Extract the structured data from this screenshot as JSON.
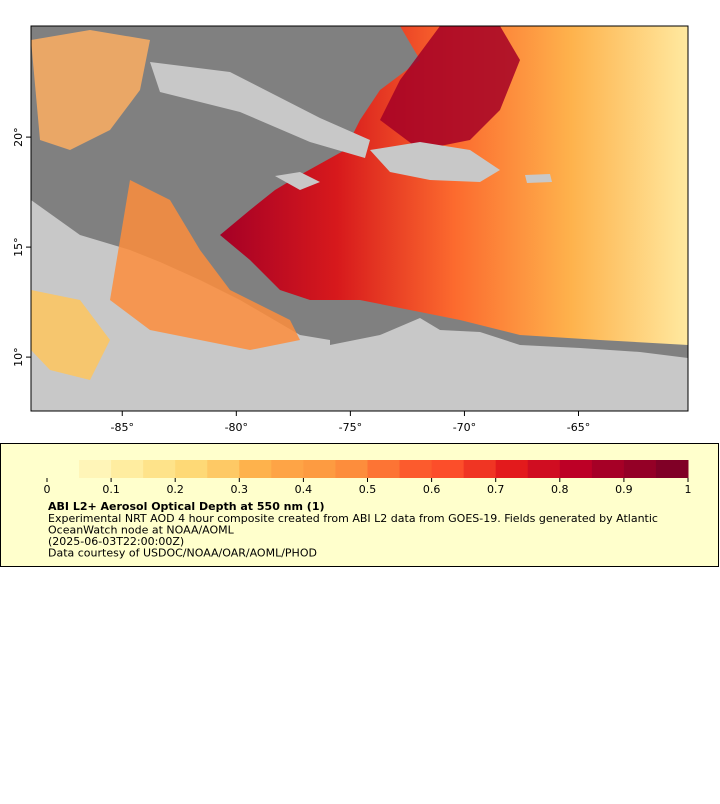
{
  "map": {
    "xlim": [
      -89,
      -60.2
    ],
    "ylim": [
      7.55,
      25.05
    ],
    "xticks": [
      {
        "value": -85,
        "label": "-85°"
      },
      {
        "value": -80,
        "label": "-80°"
      },
      {
        "value": -75,
        "label": "-75°"
      },
      {
        "value": -70,
        "label": "-70°"
      },
      {
        "value": -65,
        "label": "-65°"
      }
    ],
    "yticks": [
      {
        "value": 10,
        "label": "10°"
      },
      {
        "value": 15,
        "label": "15°"
      },
      {
        "value": 20,
        "label": "20°"
      }
    ]
  },
  "colorbar": {
    "lim": [
      0,
      1
    ],
    "ticks": [
      0,
      0.1,
      0.2,
      0.3,
      0.4,
      0.5,
      0.6,
      0.7,
      0.8,
      0.9,
      1
    ],
    "colors": [
      "#ffffcc",
      "#fff5b8",
      "#ffeda0",
      "#fee38a",
      "#fed976",
      "#fec965",
      "#feb24c",
      "#fea446",
      "#fd9b41",
      "#fd8d3c",
      "#fd7434",
      "#fc5b2d",
      "#fc4e2a",
      "#f03523",
      "#e31a1c",
      "#d00d21",
      "#bd0026",
      "#a60026",
      "#940026",
      "#800026"
    ]
  },
  "legend": {
    "title": "ABI L2+ Aerosol Optical Depth at 550 nm (1)",
    "lines": [
      "Experimental NRT AOD 4 hour composite created from ABI L2 data from GOES-19. Fields generated by Atlantic",
      "OceanWatch node at NOAA/AOML",
      "(2025-06-03T22:00:00Z)",
      "Data courtesy of USDOC/NOAA/OAR/AOML/PHOD"
    ]
  }
}
